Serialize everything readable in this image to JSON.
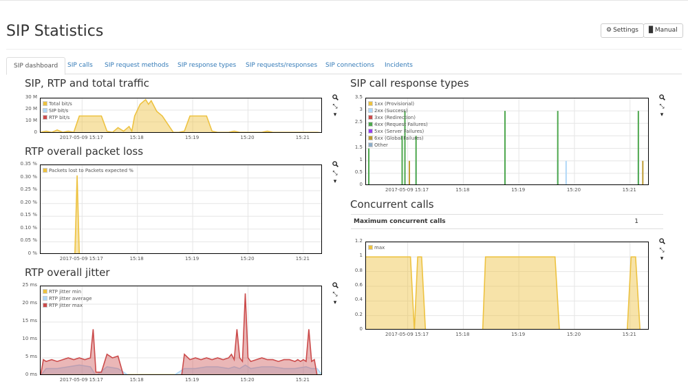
{
  "page": {
    "title": "SIP Statistics"
  },
  "header": {
    "settings_label": "Settings",
    "manual_label": "Manual"
  },
  "tabs": [
    {
      "label": "SIP dashboard",
      "active": true
    },
    {
      "label": "SIP calls"
    },
    {
      "label": "SIP request methods"
    },
    {
      "label": "SIP response types"
    },
    {
      "label": "SIP requests/responses"
    },
    {
      "label": "SIP connections"
    },
    {
      "label": "Incidents"
    }
  ],
  "concurrent_table": {
    "label": "Maximum concurrent calls",
    "value": "1"
  },
  "colors": {
    "gold": "#edc240",
    "lightblue": "#afd8f8",
    "red": "#cb4b4b",
    "green": "#4da74d",
    "purple": "#9440ed",
    "brown": "#bd9b33",
    "steel": "#8cacc6"
  },
  "chart_data": [
    {
      "id": "traffic",
      "type": "area",
      "title": "SIP, RTP and total traffic",
      "x_ticks": [
        "2017-05-09 15:17",
        "15:18",
        "15:19",
        "15:20",
        "15:21"
      ],
      "y_ticks": [
        "30 M",
        "20 M",
        "10 M",
        "0"
      ],
      "ylim": [
        0,
        30
      ],
      "xlim": [
        16.4,
        21.5
      ],
      "legend": "top-left",
      "series": [
        {
          "name": "Total bit/s",
          "color": "#edc240",
          "fill": true,
          "x": [
            16.4,
            16.5,
            16.6,
            16.7,
            16.8,
            16.9,
            17.0,
            17.1,
            17.2,
            17.3,
            17.4,
            17.5,
            17.6,
            17.7,
            17.8,
            17.9,
            18.0,
            18.05,
            18.1,
            18.2,
            18.3,
            18.35,
            18.4,
            18.5,
            18.6,
            18.7,
            18.8,
            18.9,
            19.0,
            19.1,
            19.2,
            19.3,
            19.4,
            19.5,
            19.6,
            19.7,
            19.8,
            19.9,
            20.0,
            20.1,
            20.2,
            20.3,
            20.4,
            20.5,
            20.6,
            20.7,
            20.8,
            20.9,
            21.0,
            21.1,
            21.2,
            21.3,
            21.4,
            21.5
          ],
          "y": [
            1,
            2,
            1,
            3,
            1,
            2,
            1,
            15,
            15,
            15,
            15,
            15,
            2,
            1,
            5,
            2,
            6,
            2,
            15,
            25,
            29,
            25,
            28,
            19,
            15,
            8,
            1,
            1,
            2,
            15,
            15,
            15,
            15,
            2,
            1,
            1,
            1,
            2,
            1,
            1,
            1,
            1,
            1,
            2,
            1,
            1,
            1,
            1,
            1,
            1,
            1,
            1,
            1,
            0.5
          ]
        },
        {
          "name": "SIP bit/s",
          "color": "#afd8f8",
          "fill": false,
          "x": [
            16.4,
            21.5
          ],
          "y": [
            0.1,
            0.1
          ]
        },
        {
          "name": "RTP bit/s",
          "color": "#cb4b4b",
          "fill": false,
          "x": [
            16.4,
            17.0,
            18.0,
            19.0,
            20.0,
            21.0,
            21.5
          ],
          "y": [
            0.4,
            0.5,
            0.4,
            0.5,
            0.4,
            0.5,
            0.4
          ]
        }
      ]
    },
    {
      "id": "packetloss",
      "type": "area",
      "title": "RTP overall packet loss",
      "x_ticks": [
        "2017-05-09 15:17",
        "15:18",
        "15:19",
        "15:20",
        "15:21"
      ],
      "y_ticks": [
        "0.35 %",
        "0.30 %",
        "0.25 %",
        "0.20 %",
        "0.15 %",
        "0.10 %",
        "0.05 %",
        "0 %"
      ],
      "ylim": [
        0,
        0.35
      ],
      "xlim": [
        16.4,
        21.5
      ],
      "legend": "top-left",
      "series": [
        {
          "name": "Packets lost to Packets expected %",
          "color": "#edc240",
          "fill": true,
          "x": [
            16.4,
            17.02,
            17.06,
            17.1,
            21.5
          ],
          "y": [
            0,
            0,
            0.31,
            0,
            0
          ]
        }
      ]
    },
    {
      "id": "jitter",
      "type": "area",
      "title": "RTP overall jitter",
      "x_ticks": [
        "2017-05-09 15:17",
        "15:18",
        "15:19",
        "15:20",
        "15:21"
      ],
      "y_ticks": [
        "25 ms",
        "20 ms",
        "15 ms",
        "10 ms",
        "5 ms",
        "0 ms"
      ],
      "ylim": [
        0,
        25
      ],
      "xlim": [
        16.4,
        21.5
      ],
      "legend": "top-left",
      "series": [
        {
          "name": "RTP jitter min",
          "color": "#edc240",
          "fill": false,
          "x": [
            16.4,
            21.5
          ],
          "y": [
            0.3,
            0.3
          ]
        },
        {
          "name": "RTP jitter average",
          "color": "#afd8f8",
          "fill": true,
          "x": [
            16.4,
            16.5,
            16.7,
            16.9,
            17.1,
            17.3,
            17.4,
            17.6,
            17.8,
            18.0,
            18.2,
            18.4,
            18.6,
            18.8,
            19.0,
            19.2,
            19.4,
            19.6,
            19.8,
            19.9,
            20.0,
            20.1,
            20.2,
            20.4,
            20.6,
            20.8,
            21.0,
            21.2,
            21.3,
            21.4,
            21.5
          ],
          "y": [
            0,
            2,
            2,
            2.5,
            3,
            2.5,
            0,
            2.5,
            2,
            0,
            0,
            0,
            0,
            0,
            2,
            2,
            2.5,
            2.5,
            2,
            2.5,
            2,
            3,
            2,
            2.5,
            2.5,
            2,
            2,
            2.5,
            2,
            2,
            0
          ]
        },
        {
          "name": "RTP jitter max",
          "color": "#cb4b4b",
          "fill": true,
          "x": [
            16.4,
            16.45,
            16.5,
            16.6,
            16.7,
            16.8,
            16.9,
            17.0,
            17.1,
            17.2,
            17.3,
            17.35,
            17.4,
            17.5,
            17.6,
            17.7,
            17.8,
            17.9,
            18.0,
            18.2,
            18.4,
            18.6,
            18.8,
            18.9,
            18.95,
            19.0,
            19.1,
            19.2,
            19.3,
            19.4,
            19.5,
            19.6,
            19.7,
            19.8,
            19.85,
            19.9,
            19.95,
            20.0,
            20.05,
            20.1,
            20.15,
            20.2,
            20.3,
            20.4,
            20.5,
            20.6,
            20.7,
            20.8,
            20.9,
            21.0,
            21.05,
            21.1,
            21.15,
            21.2,
            21.25,
            21.3,
            21.35,
            21.4,
            21.5
          ],
          "y": [
            0,
            4.5,
            4,
            4.5,
            4,
            4.5,
            5,
            4.5,
            5,
            4.5,
            5,
            13,
            1,
            1,
            6,
            5,
            5.5,
            0,
            0,
            0,
            0,
            0,
            0,
            0,
            0,
            6,
            4.5,
            5,
            4.5,
            5,
            4.5,
            5,
            4.5,
            5,
            6,
            4.5,
            13,
            5,
            4,
            23,
            5,
            4,
            4.5,
            5,
            4.5,
            4.5,
            4,
            4.5,
            4.5,
            4,
            4.5,
            4,
            4.5,
            4,
            13,
            4,
            4.5,
            0,
            0
          ]
        }
      ]
    },
    {
      "id": "responsetypes",
      "type": "bar",
      "title": "SIP call response types",
      "x_ticks": [
        "2017-05-09 15:17",
        "15:18",
        "15:19",
        "15:20",
        "15:21"
      ],
      "y_ticks": [
        "3.5",
        "3",
        "2.5",
        "2",
        "1.5",
        "1",
        "0.5",
        "0"
      ],
      "ylim": [
        0,
        3.5
      ],
      "xlim": [
        16.4,
        21.5
      ],
      "legend": "top-left",
      "series": [
        {
          "name": "1xx (Provisional)",
          "color": "#edc240",
          "x": [],
          "y": []
        },
        {
          "name": "2xx (Success)",
          "color": "#afd8f8",
          "x": [
            16.45,
            17.05,
            17.1,
            17.3,
            18.9,
            19.85,
            20.0,
            21.3
          ],
          "y": [
            1,
            1,
            1,
            1,
            1,
            1,
            1,
            1
          ]
        },
        {
          "name": "3xx (Redirection)",
          "color": "#cb4b4b",
          "x": [],
          "y": []
        },
        {
          "name": "4xx (Request Failures)",
          "color": "#4da74d",
          "x": [
            16.45,
            17.05,
            17.1,
            17.3,
            18.9,
            19.85,
            21.3
          ],
          "y": [
            1.5,
            2,
            3,
            2,
            3,
            3,
            3
          ]
        },
        {
          "name": "5xx (Server Failures)",
          "color": "#9440ed",
          "x": [],
          "y": []
        },
        {
          "name": "6xx (Global Failures)",
          "color": "#bd9b33",
          "x": [
            17.18,
            21.38
          ],
          "y": [
            1,
            1
          ]
        },
        {
          "name": "Other",
          "color": "#8cacc6",
          "x": [],
          "y": []
        }
      ]
    },
    {
      "id": "concurrent",
      "type": "area",
      "title": "Concurrent calls",
      "x_ticks": [
        "2017-05-09 15:17",
        "15:18",
        "15:19",
        "15:20",
        "15:21"
      ],
      "y_ticks": [
        "1.2",
        "1",
        "0.8",
        "0.6",
        "0.4",
        "0.2",
        "0"
      ],
      "ylim": [
        0,
        1.2
      ],
      "xlim": [
        16.4,
        21.5
      ],
      "legend": "top-left",
      "series": [
        {
          "name": "max",
          "color": "#edc240",
          "fill": true,
          "x": [
            16.4,
            17.15,
            17.2,
            17.27,
            17.33,
            17.4,
            17.47,
            17.53,
            18.5,
            18.55,
            19.8,
            19.88,
            21.1,
            21.17,
            21.25,
            21.33,
            21.5
          ],
          "y": [
            1,
            1,
            1,
            0,
            1,
            1,
            0,
            0,
            0,
            1,
            1,
            0,
            0,
            1,
            1,
            0,
            0
          ]
        }
      ]
    }
  ]
}
